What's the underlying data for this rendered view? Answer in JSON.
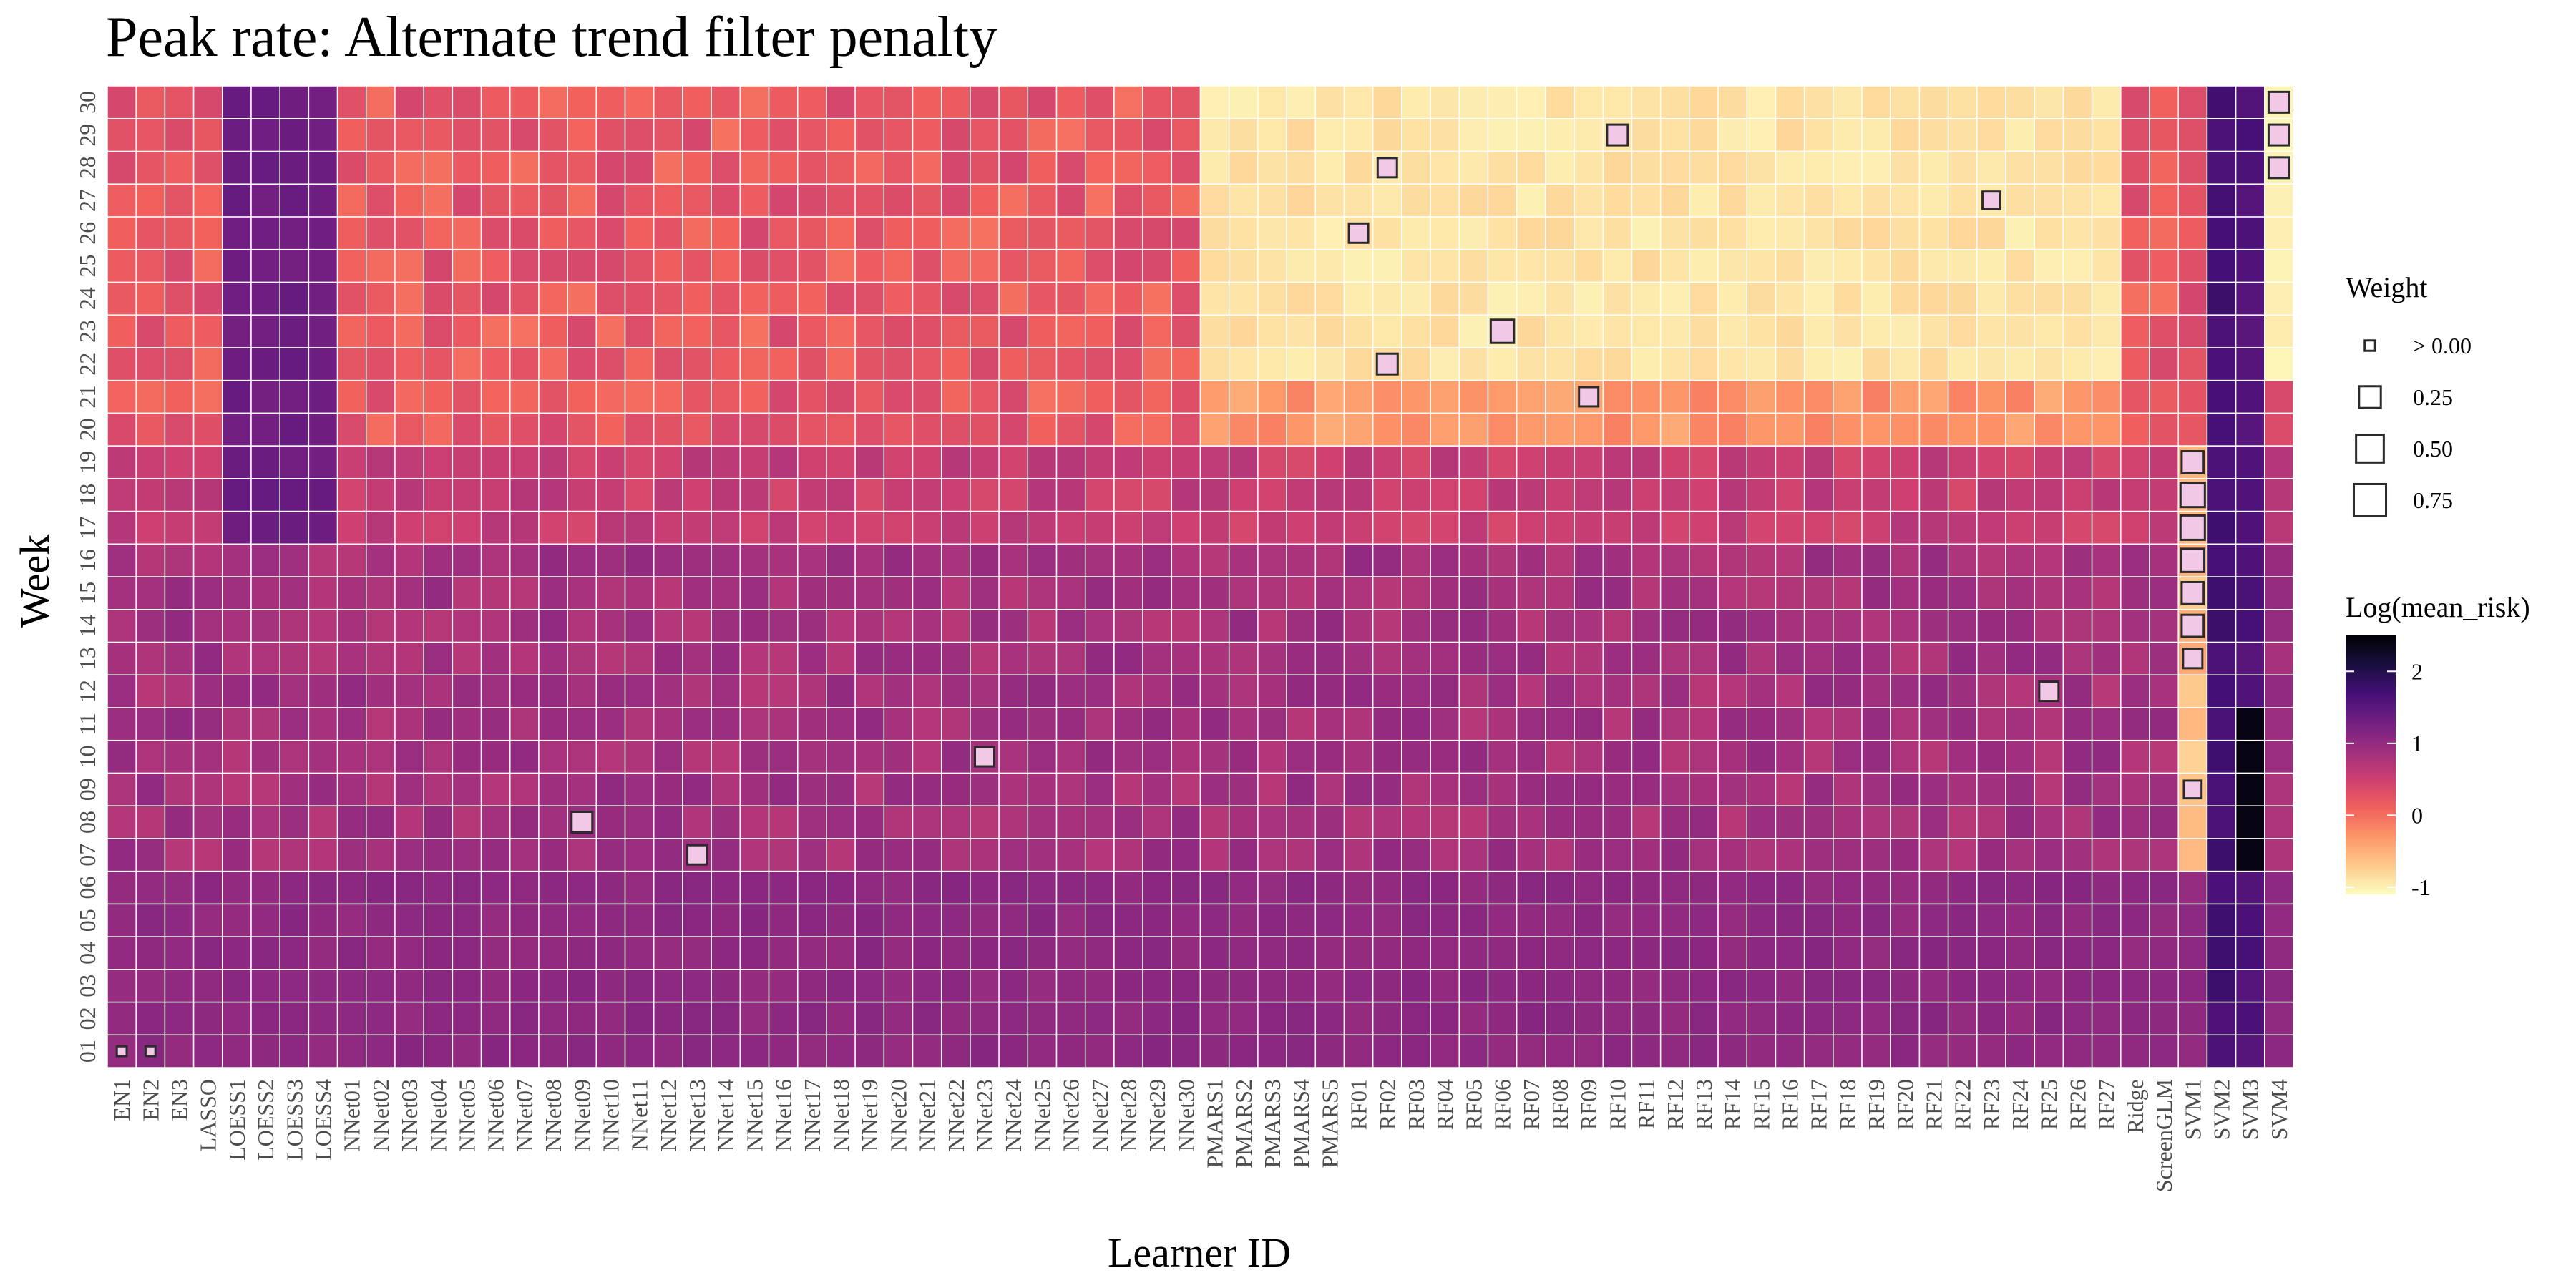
{
  "chart_data": {
    "type": "heatmap",
    "title": "Peak rate: Alternate trend filter penalty",
    "xlabel": "Learner ID",
    "ylabel": "Week",
    "x_categories": [
      "EN1",
      "EN2",
      "EN3",
      "LASSO",
      "LOESS1",
      "LOESS2",
      "LOESS3",
      "LOESS4",
      "NNet01",
      "NNet02",
      "NNet03",
      "NNet04",
      "NNet05",
      "NNet06",
      "NNet07",
      "NNet08",
      "NNet09",
      "NNet10",
      "NNet11",
      "NNet12",
      "NNet13",
      "NNet14",
      "NNet15",
      "NNet16",
      "NNet17",
      "NNet18",
      "NNet19",
      "NNet20",
      "NNet21",
      "NNet22",
      "NNet23",
      "NNet24",
      "NNet25",
      "NNet26",
      "NNet27",
      "NNet28",
      "NNet29",
      "NNet30",
      "PMARS1",
      "PMARS2",
      "PMARS3",
      "PMARS4",
      "PMARS5",
      "RF01",
      "RF02",
      "RF03",
      "RF04",
      "RF05",
      "RF06",
      "RF07",
      "RF08",
      "RF09",
      "RF10",
      "RF11",
      "RF12",
      "RF13",
      "RF14",
      "RF15",
      "RF16",
      "RF17",
      "RF18",
      "RF19",
      "RF20",
      "RF21",
      "RF22",
      "RF23",
      "RF24",
      "RF25",
      "RF26",
      "RF27",
      "Ridge",
      "ScreenGLM",
      "SVM1",
      "SVM2",
      "SVM3",
      "SVM4"
    ],
    "y_categories": [
      "01",
      "02",
      "03",
      "04",
      "05",
      "06",
      "07",
      "08",
      "09",
      "10",
      "11",
      "12",
      "13",
      "14",
      "15",
      "16",
      "17",
      "18",
      "19",
      "20",
      "21",
      "22",
      "23",
      "24",
      "25",
      "26",
      "27",
      "28",
      "29",
      "30"
    ],
    "fill_variable": "Log(mean_risk)",
    "size_variable": "Weight",
    "legends": {
      "weight": {
        "title": "Weight",
        "breaks": [
          0.01,
          0.25,
          0.5,
          0.75
        ],
        "labels": [
          "> 0.00",
          "0.25",
          "0.50",
          "0.75"
        ]
      },
      "color": {
        "title": "Log(mean_risk)",
        "range": [
          -1.1,
          2.5
        ],
        "ticks": [
          2,
          1,
          0,
          -1
        ],
        "tick_labels": [
          "2",
          "1",
          "0",
          "-1"
        ],
        "scale": "magma"
      }
    },
    "colors": {
      "scale": [
        "#fcfdbf",
        "#feca8d",
        "#fd9668",
        "#f1605d",
        "#cd4071",
        "#9e2f7f",
        "#721f81",
        "#440f76",
        "#180f3d",
        "#000004"
      ],
      "weight_box_fill": "#f1c8e6",
      "weight_box_stroke": "#2b2b2b",
      "grid_line": "#ffffff"
    },
    "mean_risk_summary": {
      "weeks_01_06": 1.05,
      "weeks_07_16": 0.85,
      "weeks_17_19": 0.55,
      "weeks_20_30_nnet": 0.2,
      "weeks_20_30_rf_pmars": -0.9,
      "loess_weeks_17_30": 1.35,
      "svm2": 1.7,
      "svm3_weeks_07_11": 2.4,
      "svm1_weeks_07_19": -0.6,
      "svm4_weeks_22_30": -1.0
    },
    "nonzero_weights": [
      {
        "x": "EN1",
        "y": "01",
        "w": 0.01
      },
      {
        "x": "EN2",
        "y": "01",
        "w": 0.01
      },
      {
        "x": "SVM1",
        "y": "09",
        "w": 0.15
      },
      {
        "x": "SVM1",
        "y": "13",
        "w": 0.2
      },
      {
        "x": "SVM1",
        "y": "14",
        "w": 0.3
      },
      {
        "x": "SVM1",
        "y": "15",
        "w": 0.3
      },
      {
        "x": "SVM1",
        "y": "16",
        "w": 0.35
      },
      {
        "x": "SVM1",
        "y": "17",
        "w": 0.4
      },
      {
        "x": "SVM1",
        "y": "18",
        "w": 0.4
      },
      {
        "x": "SVM1",
        "y": "19",
        "w": 0.3
      },
      {
        "x": "SVM4",
        "y": "28",
        "w": 0.25
      },
      {
        "x": "SVM4",
        "y": "29",
        "w": 0.25
      },
      {
        "x": "SVM4",
        "y": "30",
        "w": 0.25
      },
      {
        "x": "RF06",
        "y": "23",
        "w": 0.35
      },
      {
        "x": "RF10",
        "y": "29",
        "w": 0.25
      },
      {
        "x": "RF02",
        "y": "22",
        "w": 0.25
      },
      {
        "x": "RF02",
        "y": "28",
        "w": 0.2
      },
      {
        "x": "RF01",
        "y": "26",
        "w": 0.2
      },
      {
        "x": "NNet09",
        "y": "08",
        "w": 0.25
      },
      {
        "x": "NNet13",
        "y": "07",
        "w": 0.2
      },
      {
        "x": "NNet23",
        "y": "10",
        "w": 0.2
      },
      {
        "x": "RF09",
        "y": "21",
        "w": 0.2
      },
      {
        "x": "RF25",
        "y": "12",
        "w": 0.2
      },
      {
        "x": "RF23",
        "y": "27",
        "w": 0.15
      }
    ]
  }
}
